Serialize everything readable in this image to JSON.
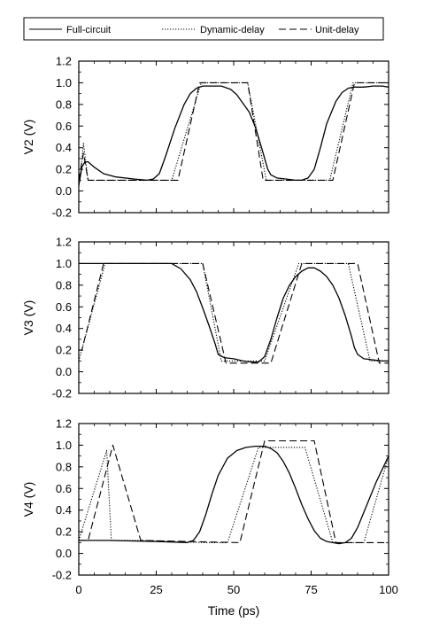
{
  "chart_data": {
    "type": "line",
    "x_label": "Time (ps)",
    "x_ticks": [
      "0",
      "25",
      "50",
      "75",
      "100"
    ],
    "x_range": [
      0,
      100
    ],
    "legend": {
      "placement": "top",
      "entries": [
        {
          "label": "Full-circuit",
          "style": "solid"
        },
        {
          "label": "Dynamic-delay",
          "style": "dotted"
        },
        {
          "label": "Unit-delay",
          "style": "dashed"
        }
      ]
    },
    "panels": [
      {
        "y_label": "V2 (V)",
        "y_range": [
          -0.2,
          1.2
        ],
        "y_ticks": [
          "1.2",
          "1.0",
          "0.8",
          "0.6",
          "0.4",
          "0.2",
          "0.0",
          "-0.2"
        ],
        "series": [
          {
            "name": "Full-circuit",
            "x": [
              0,
              1,
              2,
              3,
              5,
              8,
              12,
              18,
              22,
              24,
              26,
              28,
              31,
              34,
              36,
              38,
              40,
              43,
              46,
              49,
              51,
              53,
              55,
              57,
              59,
              60,
              61,
              62,
              64,
              67,
              70,
              72,
              74,
              76,
              78,
              80,
              83,
              85,
              87,
              89,
              92,
              95,
              98,
              100
            ],
            "y": [
              0.05,
              0.22,
              0.27,
              0.27,
              0.22,
              0.16,
              0.13,
              0.11,
              0.1,
              0.11,
              0.16,
              0.32,
              0.58,
              0.8,
              0.9,
              0.95,
              0.97,
              0.97,
              0.97,
              0.94,
              0.89,
              0.81,
              0.73,
              0.59,
              0.4,
              0.3,
              0.2,
              0.15,
              0.12,
              0.11,
              0.1,
              0.1,
              0.12,
              0.2,
              0.4,
              0.62,
              0.83,
              0.91,
              0.95,
              0.96,
              0.96,
              0.97,
              0.97,
              0.96
            ]
          },
          {
            "name": "Dynamic-delay",
            "x": [
              0,
              0.5,
              1.5,
              3,
              4,
              30,
              39.5,
              54.5,
              60.5,
              81,
              88.5,
              100
            ],
            "y": [
              0.1,
              0.15,
              0.44,
              0.1,
              0.1,
              0.1,
              1.0,
              1.0,
              0.1,
              0.1,
              1.0,
              1.0
            ]
          },
          {
            "name": "Unit-delay",
            "x": [
              0,
              1.5,
              3,
              32,
              39,
              54.5,
              59.5,
              82,
              89,
              100
            ],
            "y": [
              0.1,
              0.35,
              0.1,
              0.1,
              1.0,
              1.0,
              0.1,
              0.1,
              1.0,
              1.0
            ]
          }
        ]
      },
      {
        "y_label": "V3 (V)",
        "y_range": [
          -0.2,
          1.2
        ],
        "y_ticks": [
          "1.2",
          "1.0",
          "0.8",
          "0.6",
          "0.4",
          "0.2",
          "0.0",
          "-0.2"
        ],
        "series": [
          {
            "name": "Full-circuit",
            "x": [
              0,
              10,
              20,
              30,
              33,
              36,
              38,
              40,
              42,
              44,
              45,
              47,
              50,
              53,
              56,
              58,
              60,
              62,
              64,
              66,
              68,
              70,
              72,
              74,
              75,
              76,
              78,
              80,
              82,
              84,
              86,
              88,
              89,
              90,
              92,
              95,
              98,
              100
            ],
            "y": [
              1.0,
              1.0,
              1.0,
              1.0,
              0.95,
              0.85,
              0.74,
              0.59,
              0.43,
              0.26,
              0.16,
              0.13,
              0.12,
              0.1,
              0.09,
              0.09,
              0.14,
              0.3,
              0.5,
              0.68,
              0.8,
              0.88,
              0.93,
              0.96,
              0.96,
              0.96,
              0.93,
              0.88,
              0.8,
              0.68,
              0.52,
              0.33,
              0.22,
              0.16,
              0.12,
              0.11,
              0.1,
              0.1
            ]
          },
          {
            "name": "Dynamic-delay",
            "x": [
              0,
              8.5,
              40,
              46,
              60,
              71,
              87,
              94,
              100
            ],
            "y": [
              0.1,
              1.0,
              1.0,
              0.1,
              0.1,
              1.0,
              1.0,
              0.1,
              0.1
            ]
          },
          {
            "name": "Unit-delay",
            "x": [
              0,
              1,
              8,
              40,
              47.5,
              62,
              72,
              90,
              97,
              100
            ],
            "y": [
              0.2,
              0.2,
              1.0,
              1.0,
              0.08,
              0.08,
              1.0,
              1.0,
              0.08,
              0.08
            ]
          }
        ]
      },
      {
        "y_label": "V4 (V)",
        "y_range": [
          -0.2,
          1.2
        ],
        "y_ticks": [
          "1.2",
          "1.0",
          "0.8",
          "0.6",
          "0.4",
          "0.2",
          "0.0",
          "-0.2"
        ],
        "series": [
          {
            "name": "Full-circuit",
            "x": [
              0,
              10,
              25,
              35,
              37,
              39,
              41,
              43,
              45,
              48,
              51,
              54,
              57,
              60,
              62,
              64,
              66,
              68,
              70,
              72,
              74,
              76,
              78,
              80,
              82,
              84,
              86,
              88,
              90,
              92,
              94,
              96,
              98,
              100
            ],
            "y": [
              0.12,
              0.12,
              0.11,
              0.1,
              0.12,
              0.2,
              0.36,
              0.55,
              0.72,
              0.88,
              0.95,
              0.98,
              0.99,
              0.99,
              0.97,
              0.93,
              0.85,
              0.74,
              0.6,
              0.45,
              0.32,
              0.21,
              0.14,
              0.11,
              0.1,
              0.09,
              0.1,
              0.14,
              0.24,
              0.38,
              0.52,
              0.66,
              0.78,
              0.9
            ]
          },
          {
            "name": "Dynamic-delay",
            "x": [
              0,
              9,
              10.5,
              20,
              40,
              48,
              58,
              73,
              82,
              86,
              92,
              100
            ],
            "y": [
              0.12,
              0.95,
              0.12,
              0.12,
              0.1,
              0.1,
              0.98,
              0.98,
              0.1,
              0.1,
              0.1,
              0.9
            ]
          },
          {
            "name": "Unit-delay",
            "x": [
              0,
              3,
              11,
              20,
              52,
              60,
              76,
              83,
              100
            ],
            "y": [
              0.12,
              0.12,
              1.0,
              0.12,
              0.1,
              1.04,
              1.04,
              0.1,
              0.1
            ]
          }
        ]
      }
    ],
    "grid": false
  }
}
